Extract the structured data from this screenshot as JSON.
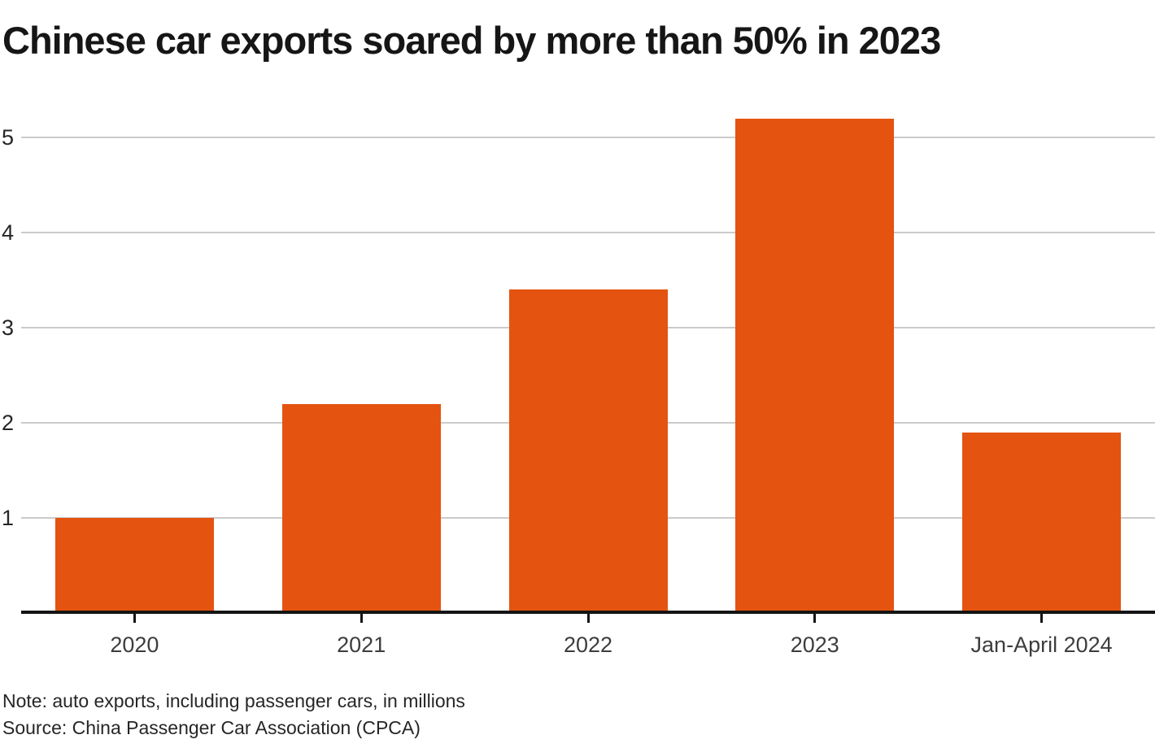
{
  "title": "Chinese car exports soared by more than 50% in 2023",
  "chart_data": {
    "type": "bar",
    "categories": [
      "2020",
      "2021",
      "2022",
      "2023",
      "Jan-April 2024"
    ],
    "values": [
      1.0,
      2.2,
      3.4,
      5.2,
      1.9
    ],
    "title": "Chinese car exports soared by more than 50% in 2023",
    "xlabel": "",
    "ylabel": "",
    "ylim": [
      0,
      5.26
    ],
    "yticks": [
      1,
      2,
      3,
      4,
      5
    ],
    "grid": true,
    "legend": false,
    "bar_color": "#e4530f",
    "gridline_color": "#cbcbcb",
    "axis_color": "#141414"
  },
  "footnotes": {
    "note": "Note: auto exports, including passenger cars, in millions",
    "source": "Source: China Passenger Car Association (CPCA)"
  }
}
